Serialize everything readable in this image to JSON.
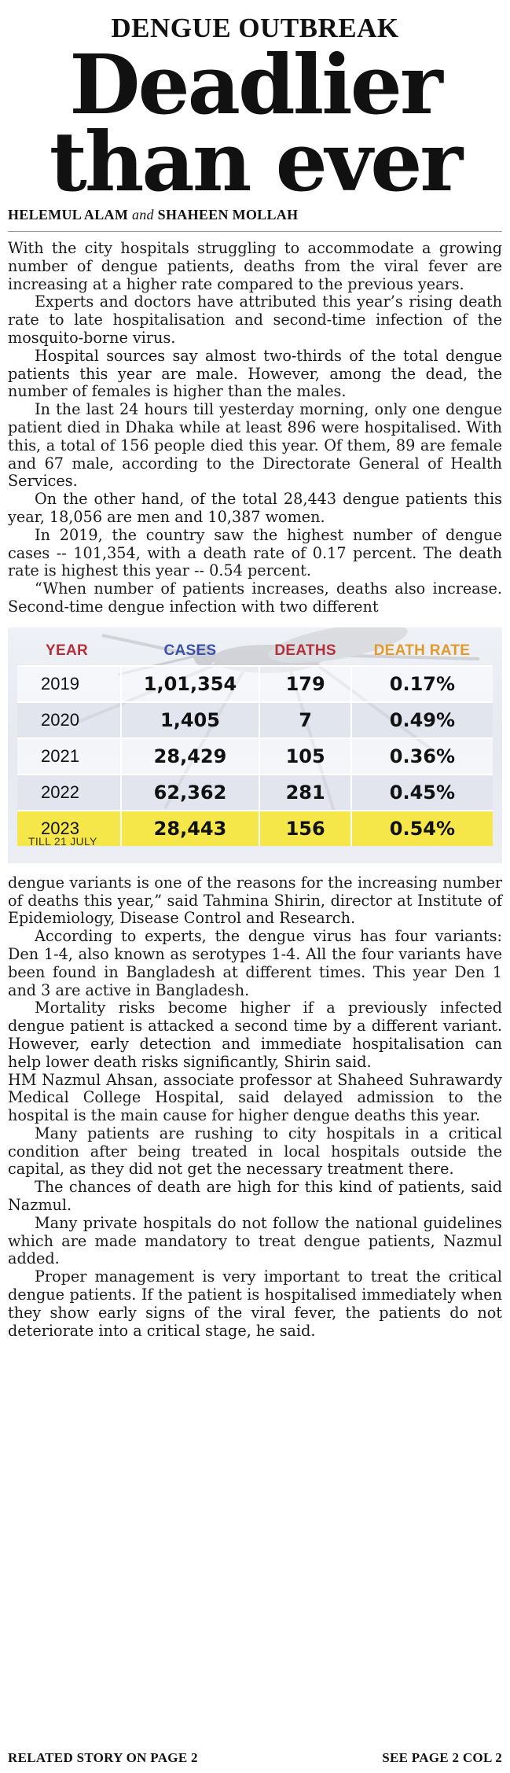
{
  "kicker": "DENGUE OUTBREAK",
  "headline": {
    "line1": "Deadlier",
    "line2": "than ever"
  },
  "byline": {
    "author1": "HELEMUL ALAM",
    "connector": "and",
    "author2": "SHAHEEN MOLLAH"
  },
  "paragraphs_before": [
    "With the city hospitals struggling to accommodate a growing number of dengue patients, deaths from the viral fever are increasing at a higher rate compared to the previous years.",
    "Experts and doctors have attributed this year’s rising death rate to late hospitalisation and second-time infection of the mosquito-borne virus.",
    "Hospital sources say almost two-thirds of the total dengue patients this year are male. However, among the dead, the number of females is higher than the males.",
    "In the last 24 hours till yesterday morning, only one dengue patient died in Dhaka while at least 896 were hospitalised. With this, a total of 156 people died this year. Of them, 89 are female and 67 male, according to the Directorate General of Health Services.",
    "On the other hand, of the total 28,443 dengue patients this year, 18,056 are men and 10,387 women.",
    "In 2019, the country saw the highest number of dengue cases -- 101,354, with a death rate of 0.17 percent. The death rate is highest this year -- 0.54 percent.",
    "“When number of patients increases, deaths also increase. Second-time dengue infection with two different"
  ],
  "table": {
    "headers": {
      "year": "YEAR",
      "cases": "CASES",
      "deaths": "DEATHS",
      "rate": "DEATH RATE"
    },
    "rows": [
      {
        "year": "2019",
        "cases": "1,01,354",
        "deaths": "179",
        "rate": "0.17%"
      },
      {
        "year": "2020",
        "cases": "1,405",
        "deaths": "7",
        "rate": "0.49%"
      },
      {
        "year": "2021",
        "cases": "28,429",
        "deaths": "105",
        "rate": "0.36%"
      },
      {
        "year": "2022",
        "cases": "62,362",
        "deaths": "281",
        "rate": "0.45%"
      },
      {
        "year": "2023",
        "cases": "28,443",
        "deaths": "156",
        "rate": "0.54%"
      }
    ],
    "note": "TILL 21 JULY",
    "highlight_color": "#f5e74a"
  },
  "paragraphs_after": [
    "dengue variants is one of the reasons for the increasing number of deaths this year,” said Tahmina Shirin, director at Institute of Epidemiology, Disease Control and Research.",
    "According to experts, the dengue virus has four variants: Den 1-4, also known as serotypes 1-4. All the four variants have been found in Bangladesh at different times. This year Den 1 and 3 are active in Bangladesh.",
    "Mortality risks become higher if a previously infected dengue patient is attacked a second time by a different variant. However, early detection and immediate hospitalisation can help lower death risks significantly, Shirin said.",
    "HM Nazmul Ahsan, associate professor at Shaheed Suhrawardy Medical College Hospital, said delayed admission to the hospital is the main cause for higher dengue deaths this year.",
    "Many patients are rushing to city hospitals in a critical condition after being treated in local hospitals outside the capital, as they did not get the necessary treatment there.",
    "The chances of death are high for this kind of patients, said Nazmul.",
    "Many private hospitals do not follow the national guidelines which are made mandatory to treat dengue patients, Nazmul added.",
    "Proper management is very important to treat the critical dengue patients. If the patient is hospitalised immediately when they show early signs of the viral fever, the patients do not deteriorate into a critical stage, he said."
  ],
  "footer": {
    "left": "RELATED STORY ON PAGE 2",
    "right": "SEE PAGE 2 COL 2"
  }
}
